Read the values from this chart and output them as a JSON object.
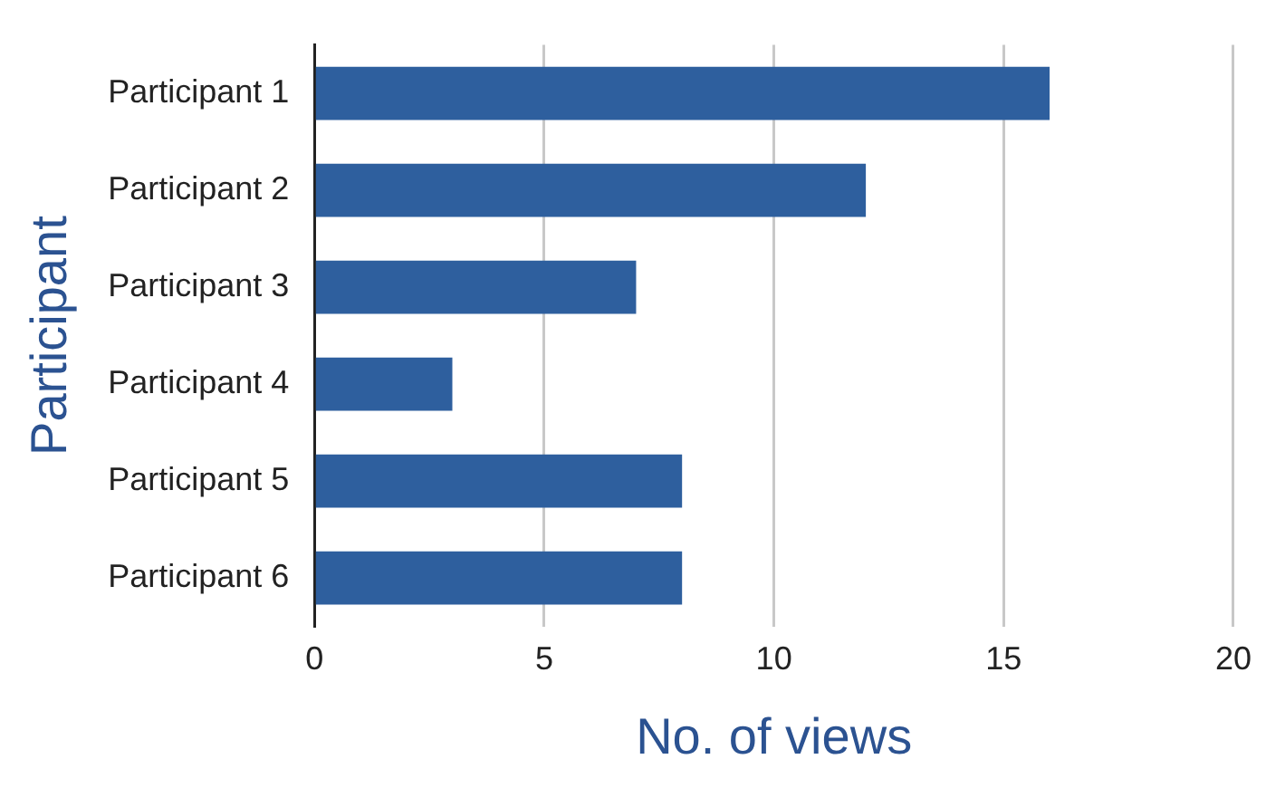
{
  "chart_data": {
    "type": "bar",
    "orientation": "horizontal",
    "xlabel": "No. of views",
    "ylabel": "Participant",
    "categories": [
      "Participant 1",
      "Participant 2",
      "Participant 3",
      "Participant 4",
      "Participant 5",
      "Participant 6"
    ],
    "values": [
      16,
      12,
      7,
      3,
      8,
      8
    ],
    "color": "#2e5f9e",
    "xlim": [
      0,
      20
    ],
    "xticks": [
      0,
      5,
      10,
      15,
      20
    ],
    "grid": "x",
    "legend": false
  }
}
